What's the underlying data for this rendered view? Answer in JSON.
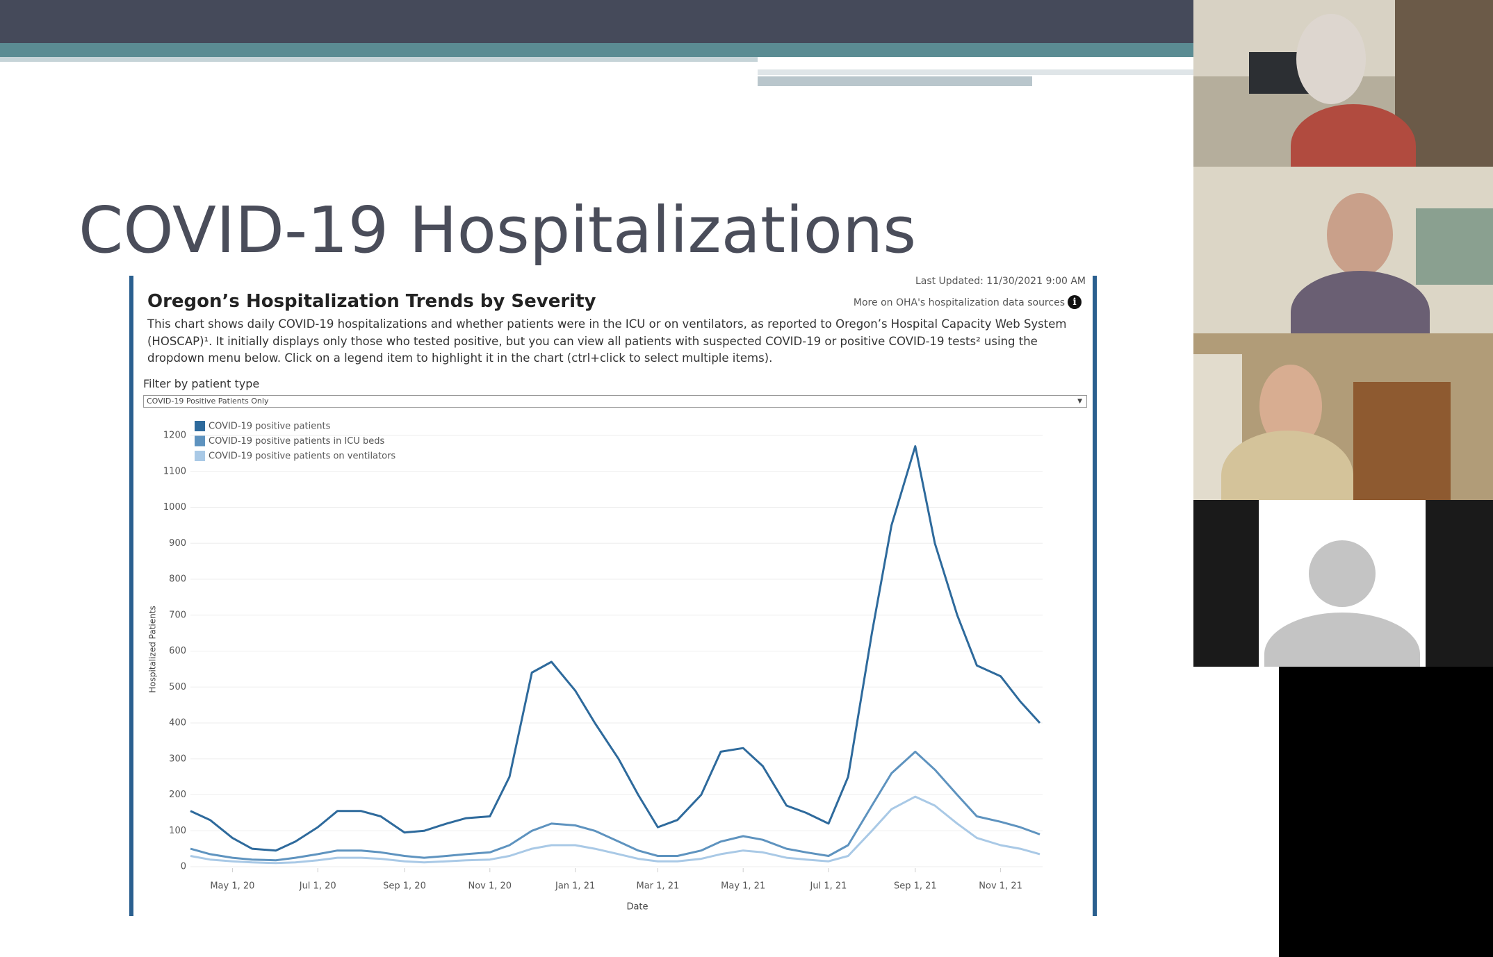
{
  "slide": {
    "title": "COVID-19 Hospitalizations"
  },
  "dashboard": {
    "last_updated": "Last Updated: 11/30/2021 9:00 AM",
    "sources_link": "More on OHA's hospitalization data sources",
    "filter_label": "Filter by patient type",
    "filter_value": "COVID-19 Positive Patients Only"
  },
  "chart_data": {
    "type": "line",
    "title": "Oregon’s Hospitalization Trends by Severity",
    "subtitle": "This chart shows daily COVID-19 hospitalizations and whether patients were in the ICU or on ventilators, as reported to Oregon’s Hospital Capacity Web System (HOSCAP)¹. It initially displays only those who tested positive, but you can view all patients with suspected COVID-19 or positive COVID-19 tests² using the dropdown menu below. Click on a legend item to highlight it in the chart (ctrl+click to select multiple items).",
    "x_label": "Date",
    "y_label": "Hospitalized Patients",
    "x": [
      "Apr 1, 20",
      "Apr 15, 20",
      "May 1, 20",
      "May 15, 20",
      "Jun 1, 20",
      "Jun 15, 20",
      "Jul 1, 20",
      "Jul 15, 20",
      "Aug 1, 20",
      "Aug 15, 20",
      "Sep 1, 20",
      "Sep 15, 20",
      "Oct 1, 20",
      "Oct 15, 20",
      "Nov 1, 20",
      "Nov 15, 20",
      "Dec 1, 20",
      "Dec 15, 20",
      "Jan 1, 21",
      "Jan 15, 21",
      "Feb 1, 21",
      "Feb 15, 21",
      "Mar 1, 21",
      "Mar 15, 21",
      "Apr 1, 21",
      "Apr 15, 21",
      "May 1, 21",
      "May 15, 21",
      "Jun 1, 21",
      "Jun 15, 21",
      "Jul 1, 21",
      "Jul 15, 21",
      "Aug 1, 21",
      "Aug 15, 21",
      "Sep 1, 21",
      "Sep 15, 21",
      "Oct 1, 21",
      "Oct 15, 21",
      "Nov 1, 21",
      "Nov 15, 21",
      "Nov 29, 21"
    ],
    "series": [
      {
        "name": "COVID-19 positive patients",
        "color": "#2e6a9c",
        "values": [
          155,
          130,
          80,
          50,
          45,
          70,
          110,
          155,
          155,
          140,
          95,
          100,
          120,
          135,
          140,
          250,
          540,
          570,
          490,
          400,
          300,
          200,
          110,
          130,
          200,
          320,
          330,
          280,
          170,
          150,
          120,
          250,
          650,
          950,
          1170,
          900,
          700,
          560,
          530,
          460,
          400
        ]
      },
      {
        "name": "COVID-19 positive patients in ICU beds",
        "color": "#5e93bf",
        "values": [
          50,
          35,
          25,
          20,
          18,
          25,
          35,
          45,
          45,
          40,
          30,
          25,
          30,
          35,
          40,
          60,
          100,
          120,
          115,
          100,
          70,
          45,
          30,
          30,
          45,
          70,
          85,
          75,
          50,
          40,
          30,
          60,
          170,
          260,
          320,
          270,
          200,
          140,
          125,
          110,
          90
        ]
      },
      {
        "name": "COVID-19 positive patients on ventilators",
        "color": "#a9c9e6",
        "values": [
          30,
          20,
          15,
          12,
          10,
          12,
          18,
          25,
          25,
          22,
          15,
          12,
          15,
          18,
          20,
          30,
          50,
          60,
          60,
          50,
          35,
          22,
          15,
          15,
          22,
          35,
          45,
          40,
          25,
          20,
          15,
          30,
          100,
          160,
          195,
          170,
          120,
          80,
          60,
          50,
          35
        ]
      }
    ],
    "xlim": [
      "Apr 1, 20",
      "Dec 1, 21"
    ],
    "xticks": [
      "May 1, 20",
      "Jul 1, 20",
      "Sep 1, 20",
      "Nov 1, 20",
      "Jan 1, 21",
      "Mar 1, 21",
      "May 1, 21",
      "Jul 1, 21",
      "Sep 1, 21",
      "Nov 1, 21"
    ],
    "ylim": [
      0,
      1200
    ],
    "yticks": [
      0,
      100,
      200,
      300,
      400,
      500,
      600,
      700,
      800,
      900,
      1000,
      1100,
      1200
    ],
    "grid": true,
    "legend": "top-left"
  }
}
